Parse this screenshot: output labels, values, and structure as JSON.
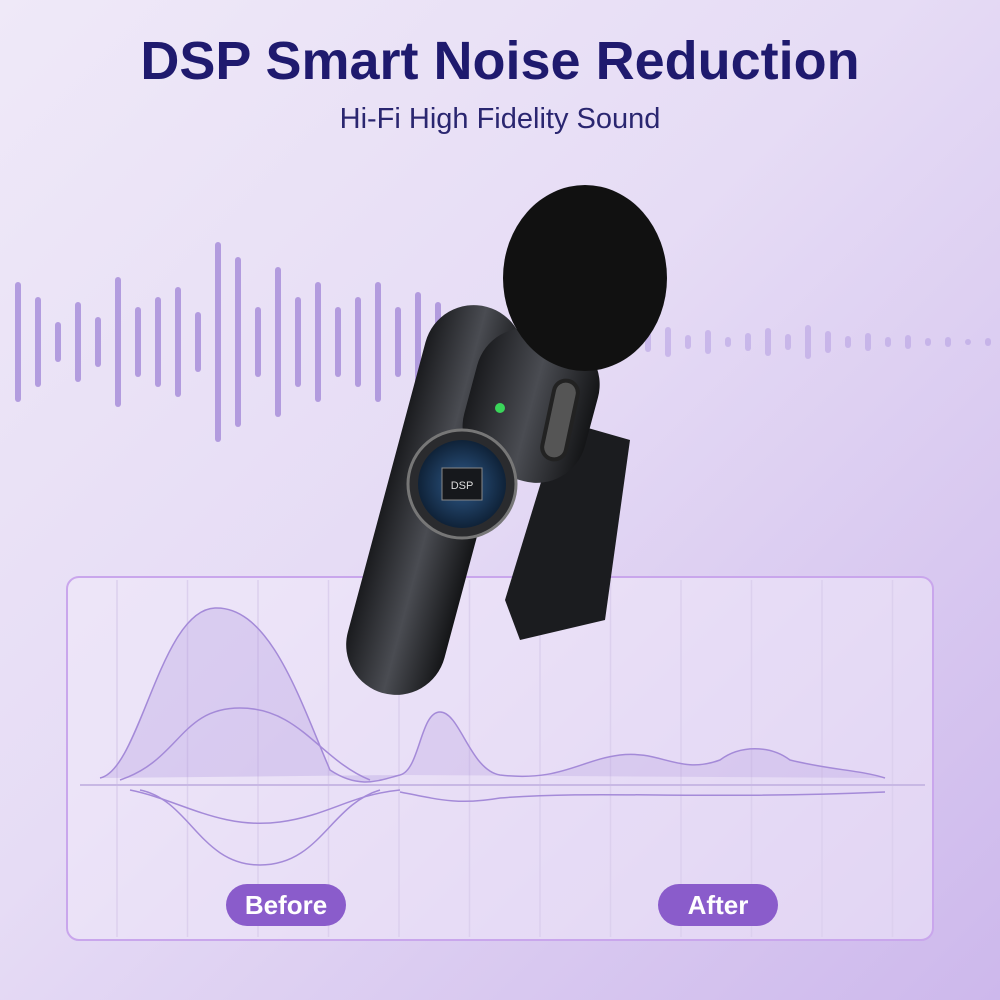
{
  "header": {
    "title": "DSP Smart Noise Reduction",
    "subtitle": "Hi-Fi High Fidelity Sound"
  },
  "product": {
    "chip_label": "DSP",
    "led_color": "#3ad65a"
  },
  "comparison": {
    "before_label": "Before",
    "after_label": "After"
  },
  "colors": {
    "title": "#1f1a6e",
    "accent": "#8a5ccb",
    "wave": "#a48ad8"
  }
}
